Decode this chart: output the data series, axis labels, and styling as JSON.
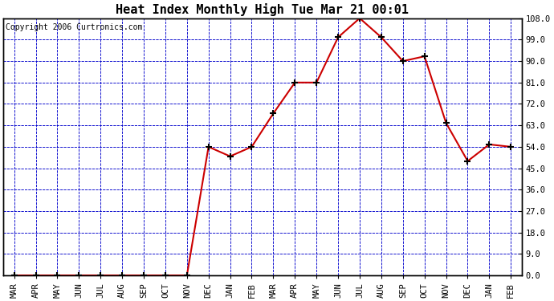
{
  "title": "Heat Index Monthly High Tue Mar 21 00:01",
  "copyright": "Copyright 2006 Curtronics.com",
  "months": [
    "MAR",
    "APR",
    "MAY",
    "JUN",
    "JUL",
    "AUG",
    "SEP",
    "OCT",
    "NOV",
    "DEC",
    "JAN",
    "FEB",
    "MAR",
    "APR",
    "MAY",
    "JUN",
    "JUL",
    "AUG",
    "SEP",
    "OCT",
    "NOV",
    "DEC",
    "JAN",
    "FEB"
  ],
  "values": [
    0.0,
    0.0,
    0.0,
    0.0,
    0.0,
    0.0,
    0.0,
    0.0,
    0.0,
    54.0,
    50.0,
    54.0,
    68.0,
    81.0,
    81.0,
    100.0,
    108.0,
    100.0,
    90.0,
    92.0,
    64.0,
    48.0,
    55.0,
    54.0
  ],
  "line_color": "#cc0000",
  "marker_color": "#000000",
  "fig_bg_color": "#ffffff",
  "plot_bg_color": "#ffffff",
  "grid_color": "#0000cc",
  "border_color": "#000000",
  "title_fontsize": 11,
  "copyright_fontsize": 7,
  "tick_fontsize": 7.5,
  "ylim": [
    0.0,
    108.0
  ],
  "yticks": [
    0.0,
    9.0,
    18.0,
    27.0,
    36.0,
    45.0,
    54.0,
    63.0,
    72.0,
    81.0,
    90.0,
    99.0,
    108.0
  ]
}
